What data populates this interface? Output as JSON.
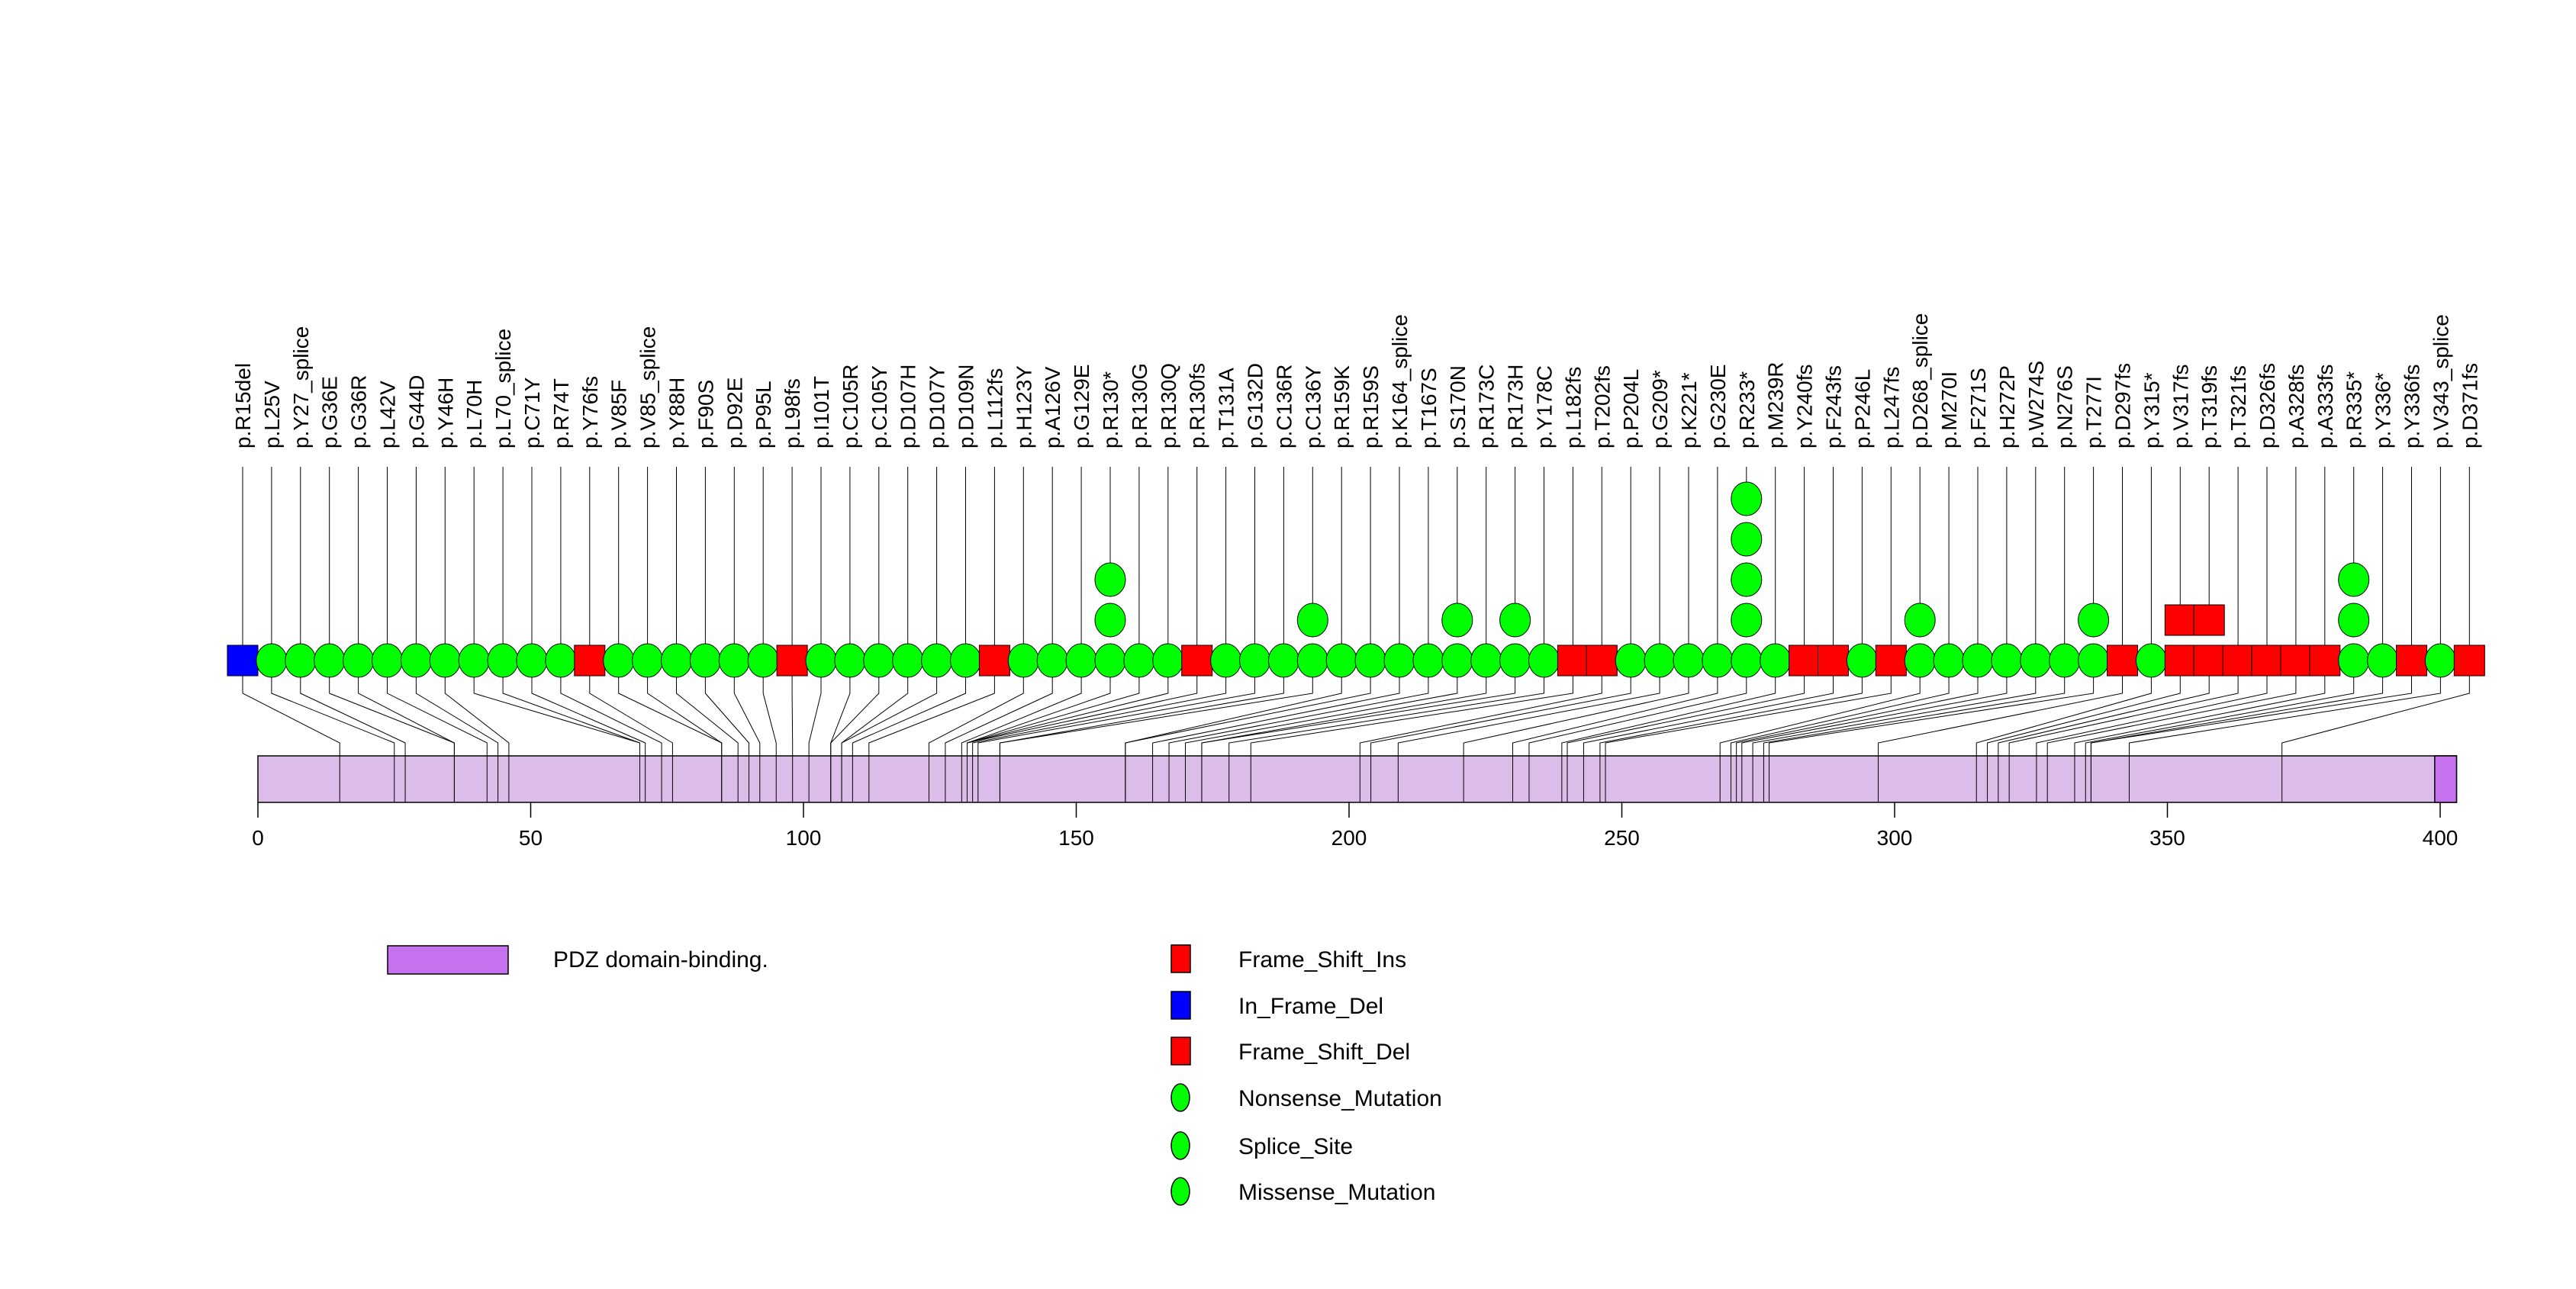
{
  "chart_data": {
    "type": "lollipop",
    "title": "",
    "xlabel": "",
    "ylabel": "",
    "protein_length": 403,
    "xlim": [
      0,
      400
    ],
    "x_ticks": [
      "0",
      "50",
      "100",
      "150",
      "200",
      "250",
      "300",
      "350",
      "400"
    ],
    "domains": [
      {
        "name": "PDZ domain-binding.",
        "start": 399,
        "end": 403,
        "color": "#C671EE"
      }
    ],
    "backbone_color": "#DCBDEA",
    "mutation_colors": {
      "frameshift": "#FF0000",
      "inframe_del": "#0000FF",
      "point": "#00FF00"
    },
    "mutations": [
      {
        "label": "p.R15del",
        "pos": 15,
        "type": "inframe_del",
        "count": 1
      },
      {
        "label": "p.L25V",
        "pos": 25,
        "type": "point",
        "count": 1
      },
      {
        "label": "p.Y27_splice",
        "pos": 27,
        "type": "point",
        "count": 1
      },
      {
        "label": "p.G36E",
        "pos": 36,
        "type": "point",
        "count": 1
      },
      {
        "label": "p.G36R",
        "pos": 36,
        "type": "point",
        "count": 1
      },
      {
        "label": "p.L42V",
        "pos": 42,
        "type": "point",
        "count": 1
      },
      {
        "label": "p.G44D",
        "pos": 44,
        "type": "point",
        "count": 1
      },
      {
        "label": "p.Y46H",
        "pos": 46,
        "type": "point",
        "count": 1
      },
      {
        "label": "p.L70H",
        "pos": 70,
        "type": "point",
        "count": 1
      },
      {
        "label": "p.L70_splice",
        "pos": 70,
        "type": "point",
        "count": 1
      },
      {
        "label": "p.C71Y",
        "pos": 71,
        "type": "point",
        "count": 1
      },
      {
        "label": "p.R74T",
        "pos": 74,
        "type": "point",
        "count": 1
      },
      {
        "label": "p.Y76fs",
        "pos": 76,
        "type": "frameshift",
        "count": 1
      },
      {
        "label": "p.V85F",
        "pos": 85,
        "type": "point",
        "count": 1
      },
      {
        "label": "p.V85_splice",
        "pos": 85,
        "type": "point",
        "count": 1
      },
      {
        "label": "p.Y88H",
        "pos": 88,
        "type": "point",
        "count": 1
      },
      {
        "label": "p.F90S",
        "pos": 90,
        "type": "point",
        "count": 1
      },
      {
        "label": "p.D92E",
        "pos": 92,
        "type": "point",
        "count": 1
      },
      {
        "label": "p.P95L",
        "pos": 95,
        "type": "point",
        "count": 1
      },
      {
        "label": "p.L98fs",
        "pos": 98,
        "type": "frameshift",
        "count": 1
      },
      {
        "label": "p.I101T",
        "pos": 101,
        "type": "point",
        "count": 1
      },
      {
        "label": "p.C105R",
        "pos": 105,
        "type": "point",
        "count": 1
      },
      {
        "label": "p.C105Y",
        "pos": 105,
        "type": "point",
        "count": 1
      },
      {
        "label": "p.D107H",
        "pos": 107,
        "type": "point",
        "count": 1
      },
      {
        "label": "p.D107Y",
        "pos": 107,
        "type": "point",
        "count": 1
      },
      {
        "label": "p.D109N",
        "pos": 109,
        "type": "point",
        "count": 1
      },
      {
        "label": "p.L112fs",
        "pos": 112,
        "type": "frameshift",
        "count": 1
      },
      {
        "label": "p.H123Y",
        "pos": 123,
        "type": "point",
        "count": 1
      },
      {
        "label": "p.A126V",
        "pos": 126,
        "type": "point",
        "count": 1
      },
      {
        "label": "p.G129E",
        "pos": 129,
        "type": "point",
        "count": 1
      },
      {
        "label": "p.R130*",
        "pos": 130,
        "type": "point",
        "count": 3
      },
      {
        "label": "p.R130G",
        "pos": 130,
        "type": "point",
        "count": 1
      },
      {
        "label": "p.R130Q",
        "pos": 130,
        "type": "point",
        "count": 1
      },
      {
        "label": "p.R130fs",
        "pos": 130,
        "type": "frameshift",
        "count": 1
      },
      {
        "label": "p.T131A",
        "pos": 131,
        "type": "point",
        "count": 1
      },
      {
        "label": "p.G132D",
        "pos": 132,
        "type": "point",
        "count": 1
      },
      {
        "label": "p.C136R",
        "pos": 136,
        "type": "point",
        "count": 1
      },
      {
        "label": "p.C136Y",
        "pos": 136,
        "type": "point",
        "count": 2
      },
      {
        "label": "p.R159K",
        "pos": 159,
        "type": "point",
        "count": 1
      },
      {
        "label": "p.R159S",
        "pos": 159,
        "type": "point",
        "count": 1
      },
      {
        "label": "p.K164_splice",
        "pos": 164,
        "type": "point",
        "count": 1
      },
      {
        "label": "p.T167S",
        "pos": 167,
        "type": "point",
        "count": 1
      },
      {
        "label": "p.S170N",
        "pos": 170,
        "type": "point",
        "count": 2
      },
      {
        "label": "p.R173C",
        "pos": 173,
        "type": "point",
        "count": 1
      },
      {
        "label": "p.R173H",
        "pos": 173,
        "type": "point",
        "count": 2
      },
      {
        "label": "p.Y178C",
        "pos": 178,
        "type": "point",
        "count": 1
      },
      {
        "label": "p.L182fs",
        "pos": 182,
        "type": "frameshift",
        "count": 1
      },
      {
        "label": "p.T202fs",
        "pos": 202,
        "type": "frameshift",
        "count": 1
      },
      {
        "label": "p.P204L",
        "pos": 204,
        "type": "point",
        "count": 1
      },
      {
        "label": "p.G209*",
        "pos": 209,
        "type": "point",
        "count": 1
      },
      {
        "label": "p.K221*",
        "pos": 221,
        "type": "point",
        "count": 1
      },
      {
        "label": "p.G230E",
        "pos": 230,
        "type": "point",
        "count": 1
      },
      {
        "label": "p.R233*",
        "pos": 233,
        "type": "point",
        "count": 5
      },
      {
        "label": "p.M239R",
        "pos": 239,
        "type": "point",
        "count": 1
      },
      {
        "label": "p.Y240fs",
        "pos": 240,
        "type": "frameshift",
        "count": 1
      },
      {
        "label": "p.F243fs",
        "pos": 243,
        "type": "frameshift",
        "count": 1
      },
      {
        "label": "p.P246L",
        "pos": 246,
        "type": "point",
        "count": 1
      },
      {
        "label": "p.L247fs",
        "pos": 247,
        "type": "frameshift",
        "count": 1
      },
      {
        "label": "p.D268_splice",
        "pos": 268,
        "type": "point",
        "count": 2
      },
      {
        "label": "p.M270I",
        "pos": 270,
        "type": "point",
        "count": 1
      },
      {
        "label": "p.F271S",
        "pos": 271,
        "type": "point",
        "count": 1
      },
      {
        "label": "p.H272P",
        "pos": 272,
        "type": "point",
        "count": 1
      },
      {
        "label": "p.W274S",
        "pos": 274,
        "type": "point",
        "count": 1
      },
      {
        "label": "p.N276S",
        "pos": 276,
        "type": "point",
        "count": 1
      },
      {
        "label": "p.T277I",
        "pos": 277,
        "type": "point",
        "count": 2
      },
      {
        "label": "p.D297fs",
        "pos": 297,
        "type": "frameshift",
        "count": 1
      },
      {
        "label": "p.Y315*",
        "pos": 315,
        "type": "point",
        "count": 1
      },
      {
        "label": "p.V317fs",
        "pos": 317,
        "type": "frameshift",
        "count": 2
      },
      {
        "label": "p.T319fs",
        "pos": 319,
        "type": "frameshift",
        "count": 2
      },
      {
        "label": "p.T321fs",
        "pos": 321,
        "type": "frameshift",
        "count": 1
      },
      {
        "label": "p.D326fs",
        "pos": 326,
        "type": "frameshift",
        "count": 1
      },
      {
        "label": "p.A328fs",
        "pos": 328,
        "type": "frameshift",
        "count": 1
      },
      {
        "label": "p.A333fs",
        "pos": 333,
        "type": "frameshift",
        "count": 1
      },
      {
        "label": "p.R335*",
        "pos": 335,
        "type": "point",
        "count": 3
      },
      {
        "label": "p.Y336*",
        "pos": 336,
        "type": "point",
        "count": 1
      },
      {
        "label": "p.Y336fs",
        "pos": 336,
        "type": "frameshift",
        "count": 1
      },
      {
        "label": "p.V343_splice",
        "pos": 343,
        "type": "point",
        "count": 1
      },
      {
        "label": "p.D371fs",
        "pos": 371,
        "type": "frameshift",
        "count": 1
      }
    ],
    "legend": {
      "placement": "bottom",
      "domain_entries": [
        {
          "label": "PDZ domain-binding.",
          "color": "#C671EE"
        }
      ],
      "mutation_entries": [
        {
          "label": "Frame_Shift_Ins",
          "shape": "square",
          "color": "#FF0000"
        },
        {
          "label": "In_Frame_Del",
          "shape": "square",
          "color": "#0000FF"
        },
        {
          "label": "Frame_Shift_Del",
          "shape": "square",
          "color": "#FF0000"
        },
        {
          "label": "Nonsense_Mutation",
          "shape": "circle",
          "color": "#00FF00"
        },
        {
          "label": "Splice_Site",
          "shape": "circle",
          "color": "#00FF00"
        },
        {
          "label": "Missense_Mutation",
          "shape": "circle",
          "color": "#00FF00"
        }
      ]
    }
  }
}
